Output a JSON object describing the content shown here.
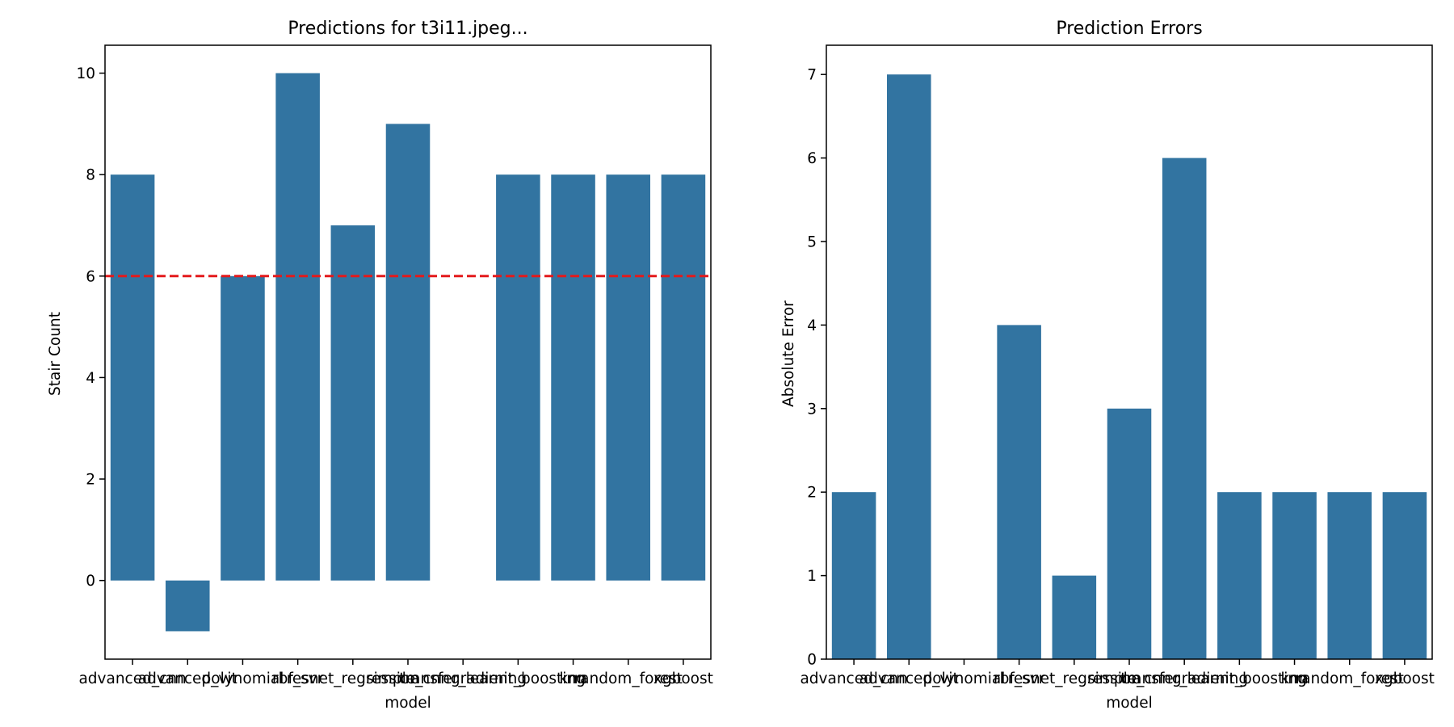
{
  "chart_data": [
    {
      "type": "bar",
      "title": "Predictions for t3i11.jpeg...",
      "xlabel": "model",
      "ylabel": "Stair Count",
      "categories": [
        "advanced_cnn",
        "advanced_vit",
        "polynomial",
        "rbf_svr",
        "resnet_regression",
        "simple_cnn",
        "transfer_learning",
        "gradient_boosting",
        "knn",
        "random_forest",
        "xgboost"
      ],
      "values": [
        8,
        -1,
        6,
        10,
        7,
        9,
        0,
        8,
        8,
        8,
        8
      ],
      "ylim": [
        -1.55,
        10.55
      ],
      "yticks": [
        0,
        2,
        4,
        6,
        8,
        10
      ],
      "reference_line": {
        "y": 6,
        "style": "dashed",
        "color": "#e31a1c"
      },
      "bar_color": "#3274a1",
      "grid": false
    },
    {
      "type": "bar",
      "title": "Prediction Errors",
      "xlabel": "model",
      "ylabel": "Absolute Error",
      "categories": [
        "advanced_cnn",
        "advanced_vit",
        "polynomial",
        "rbf_svr",
        "resnet_regression",
        "simple_cnn",
        "transfer_learning",
        "gradient_boosting",
        "knn",
        "random_forest",
        "xgboost"
      ],
      "values": [
        2,
        7,
        0,
        4,
        1,
        3,
        6,
        2,
        2,
        2,
        2
      ],
      "ylim": [
        0,
        7.35
      ],
      "yticks": [
        0,
        1,
        2,
        3,
        4,
        5,
        6,
        7
      ],
      "bar_color": "#3274a1",
      "grid": false
    }
  ]
}
